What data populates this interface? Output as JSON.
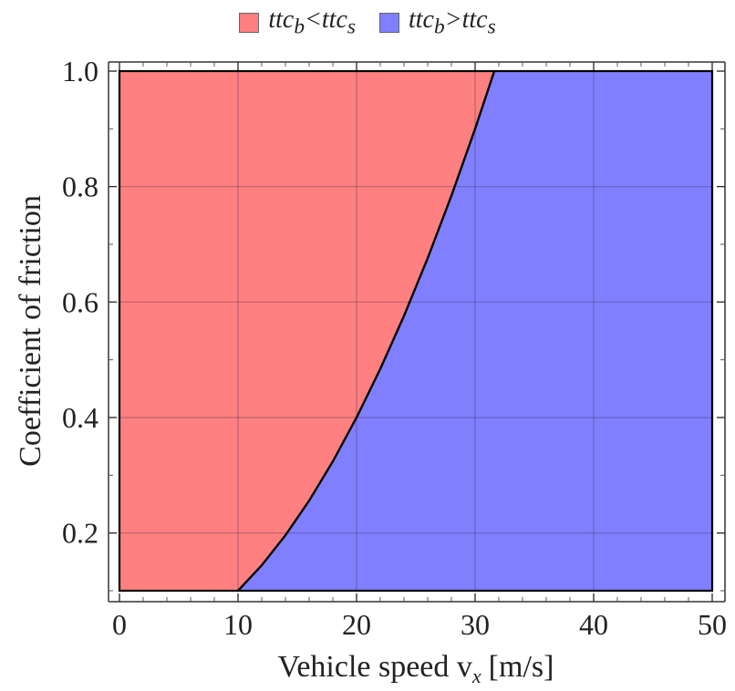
{
  "chart_data": {
    "type": "area",
    "title": "",
    "xlabel": "Vehicle speed v",
    "xlabel_sub": "x",
    "xlabel_unit": "[m/s]",
    "ylabel": "Coefficient of friction",
    "xlim": [
      0,
      50
    ],
    "ylim": [
      0.1,
      1.0
    ],
    "xticks": [
      0,
      10,
      20,
      30,
      40,
      50
    ],
    "xtick_labels": [
      "0",
      "10",
      "20",
      "30",
      "40",
      "50"
    ],
    "yticks": [
      0.2,
      0.4,
      0.6,
      0.8,
      1.0
    ],
    "ytick_labels": [
      "0.2",
      "0.4",
      "0.6",
      "0.8",
      "1.0"
    ],
    "grid": true,
    "legend_position": "top-center",
    "series": [
      {
        "name": "ttc_b<ttc_s",
        "region": "left of boundary",
        "color": "#ff8080"
      },
      {
        "name": "ttc_b>ttc_s",
        "region": "right of boundary",
        "color": "#8080ff"
      }
    ],
    "boundary": {
      "x": [
        10,
        12,
        14,
        16,
        18,
        20,
        22,
        24,
        26,
        28,
        30,
        31.62
      ],
      "y": [
        0.1,
        0.144,
        0.196,
        0.256,
        0.324,
        0.4,
        0.484,
        0.576,
        0.676,
        0.784,
        0.9,
        1.0
      ]
    }
  },
  "legend": {
    "item1": {
      "base": "ttc",
      "sub1": "b",
      "op": "<",
      "base2": "ttc",
      "sub2": "s",
      "color": "#ff8080"
    },
    "item2": {
      "base": "ttc",
      "sub1": "b",
      "op": ">",
      "base2": "ttc",
      "sub2": "s",
      "color": "#8080ff"
    }
  }
}
